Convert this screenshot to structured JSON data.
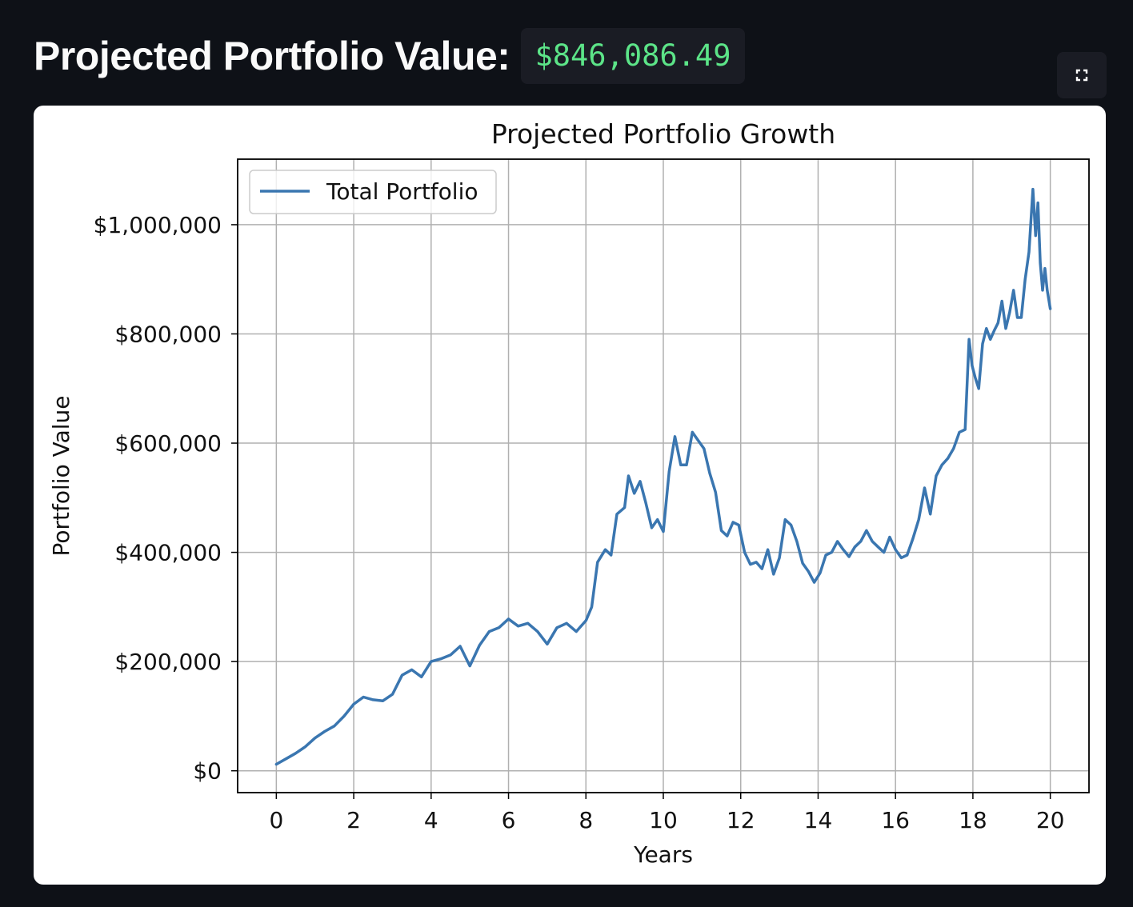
{
  "header": {
    "label": "Projected Portfolio Value:",
    "value": "$846,086.49"
  },
  "toolbar": {
    "fullscreen_icon": "fullscreen-icon"
  },
  "colors": {
    "background": "#0e1117",
    "value_text": "#5ce488",
    "series_line": "#3a76b0",
    "grid": "#b0b0b0"
  },
  "chart_data": {
    "type": "line",
    "title": "Projected Portfolio Growth",
    "xlabel": "Years",
    "ylabel": "Portfolio Value",
    "xlim": [
      -1,
      21
    ],
    "ylim": [
      -40000,
      1120000
    ],
    "x_ticks": [
      0,
      2,
      4,
      6,
      8,
      10,
      12,
      14,
      16,
      18,
      20
    ],
    "x_tick_labels": [
      "0",
      "2",
      "4",
      "6",
      "8",
      "10",
      "12",
      "14",
      "16",
      "18",
      "20"
    ],
    "y_ticks": [
      0,
      200000,
      400000,
      600000,
      800000,
      1000000
    ],
    "y_tick_labels": [
      "$0",
      "$200,000",
      "$400,000",
      "$600,000",
      "$800,000",
      "$1,000,000"
    ],
    "grid": true,
    "legend_position": "top-left",
    "series": [
      {
        "name": "Total Portfolio",
        "color": "#3a76b0",
        "x": [
          0,
          0.25,
          0.5,
          0.75,
          1.0,
          1.25,
          1.5,
          1.75,
          2.0,
          2.25,
          2.5,
          2.75,
          3.0,
          3.25,
          3.5,
          3.75,
          4.0,
          4.25,
          4.5,
          4.75,
          5.0,
          5.25,
          5.5,
          5.75,
          6.0,
          6.25,
          6.5,
          6.75,
          7.0,
          7.25,
          7.5,
          7.75,
          8.0,
          8.15,
          8.3,
          8.5,
          8.65,
          8.8,
          9.0,
          9.1,
          9.25,
          9.4,
          9.55,
          9.7,
          9.85,
          10.0,
          10.15,
          10.3,
          10.45,
          10.6,
          10.75,
          10.9,
          11.05,
          11.2,
          11.35,
          11.5,
          11.65,
          11.8,
          11.95,
          12.1,
          12.25,
          12.4,
          12.55,
          12.7,
          12.85,
          13.0,
          13.15,
          13.3,
          13.45,
          13.6,
          13.75,
          13.9,
          14.05,
          14.2,
          14.35,
          14.5,
          14.65,
          14.8,
          14.95,
          15.1,
          15.25,
          15.4,
          15.55,
          15.7,
          15.85,
          16.0,
          16.15,
          16.3,
          16.45,
          16.6,
          16.75,
          16.9,
          17.05,
          17.2,
          17.35,
          17.5,
          17.65,
          17.8,
          17.9,
          17.98,
          18.06,
          18.15,
          18.25,
          18.35,
          18.45,
          18.55,
          18.65,
          18.75,
          18.85,
          18.95,
          19.05,
          19.15,
          19.25,
          19.35,
          19.45,
          19.55,
          19.62,
          19.68,
          19.74,
          19.8,
          19.86,
          19.92,
          20.0
        ],
        "values": [
          12000,
          22000,
          32000,
          44000,
          60000,
          72000,
          82000,
          100000,
          122000,
          135000,
          130000,
          128000,
          140000,
          175000,
          185000,
          172000,
          200000,
          205000,
          212000,
          228000,
          192000,
          230000,
          255000,
          262000,
          278000,
          265000,
          270000,
          255000,
          232000,
          262000,
          270000,
          255000,
          275000,
          300000,
          382000,
          405000,
          395000,
          470000,
          482000,
          540000,
          508000,
          530000,
          490000,
          445000,
          460000,
          438000,
          548000,
          612000,
          560000,
          560000,
          620000,
          605000,
          590000,
          545000,
          510000,
          440000,
          430000,
          455000,
          450000,
          400000,
          378000,
          382000,
          370000,
          405000,
          360000,
          390000,
          460000,
          450000,
          420000,
          380000,
          365000,
          345000,
          362000,
          395000,
          400000,
          420000,
          405000,
          392000,
          410000,
          420000,
          440000,
          420000,
          410000,
          400000,
          428000,
          405000,
          390000,
          395000,
          425000,
          460000,
          518000,
          470000,
          540000,
          560000,
          572000,
          590000,
          620000,
          625000,
          790000,
          742000,
          720000,
          700000,
          782000,
          810000,
          790000,
          806000,
          820000,
          860000,
          810000,
          840000,
          880000,
          830000,
          830000,
          900000,
          950000,
          1065000,
          980000,
          1040000,
          930000,
          880000,
          920000,
          880000,
          846086
        ]
      }
    ]
  }
}
